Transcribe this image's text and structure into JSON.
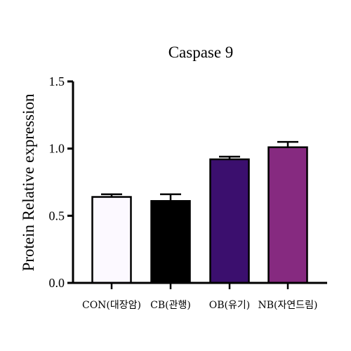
{
  "chart_data": {
    "type": "bar",
    "title": "Caspase 9",
    "xlabel": "",
    "ylabel": "Protein Relative expression",
    "ylim": [
      0,
      1.5
    ],
    "yticks": [
      "0.0",
      "0.5",
      "1.0",
      "1.5"
    ],
    "categories": [
      "CON(대장암)",
      "CB(관행)",
      "OB(유기)",
      "NB(자연드림)"
    ],
    "values": [
      0.64,
      0.61,
      0.92,
      1.01
    ],
    "errors": [
      0.02,
      0.05,
      0.02,
      0.04
    ],
    "colors": [
      "#fcf9ff",
      "#000000",
      "#3b0f6e",
      "#862a80"
    ],
    "grid": false,
    "legend": "none"
  }
}
